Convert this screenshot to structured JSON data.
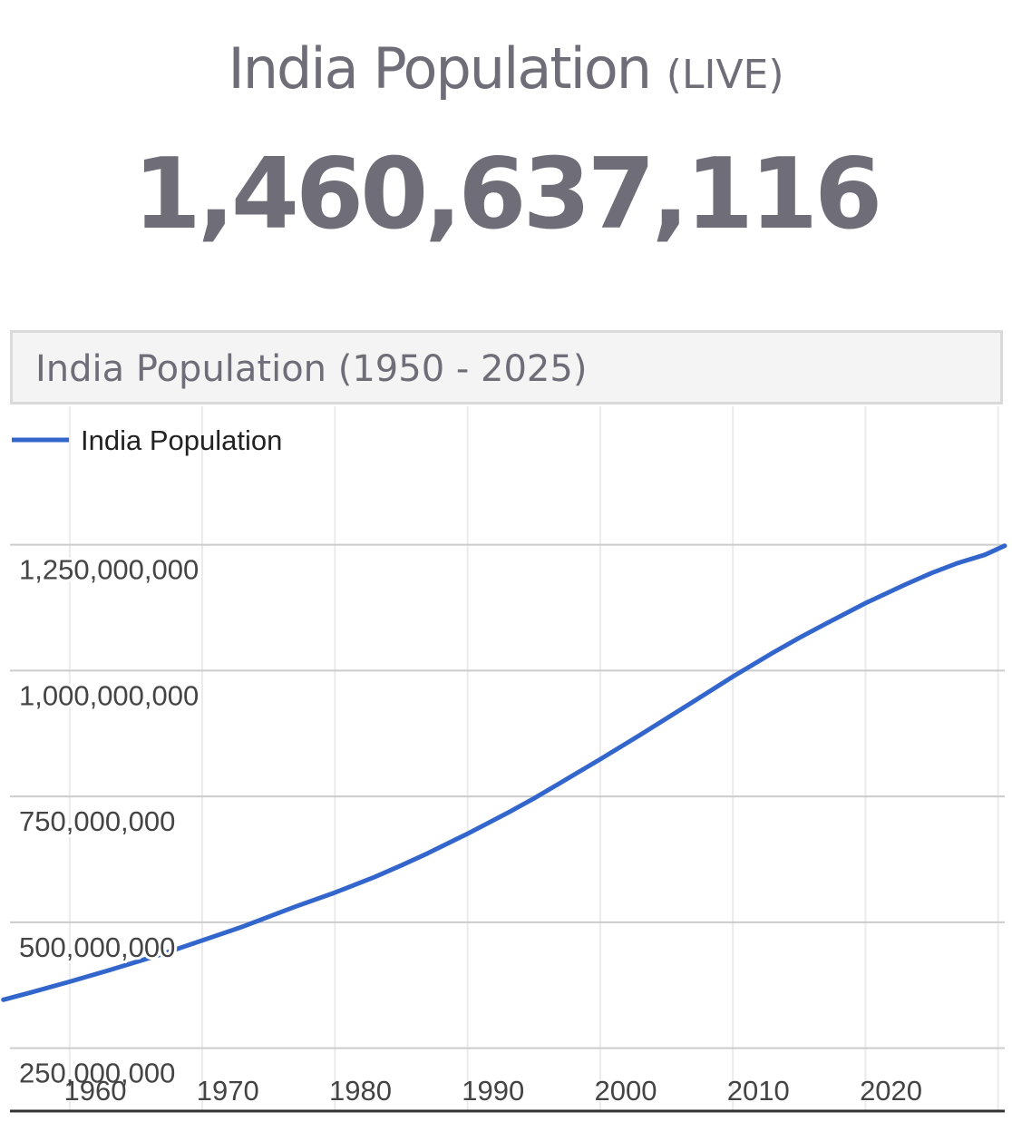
{
  "header": {
    "title": "India Population",
    "title_suffix": "(LIVE)",
    "live_count": "1,460,637,116"
  },
  "chart_panel": {
    "title": "India Population (1950 - 2025)"
  },
  "colors": {
    "text": "#6e6d78",
    "line": "#3366cc",
    "grid": "#cccccc",
    "grid_minor": "#ebebeb"
  },
  "chart_data": {
    "type": "line",
    "title": "India Population (1950 - 2025)",
    "legend_position": "top-left",
    "grid": true,
    "xlim": [
      1950.5,
      2025.5
    ],
    "ylim": [
      125000000,
      1525000000
    ],
    "x_ticks": [
      1960,
      1970,
      1980,
      1990,
      2000,
      2010,
      2020
    ],
    "x_tick_labels": [
      "1960",
      "1970",
      "1980",
      "1990",
      "2000",
      "2010",
      "2020"
    ],
    "y_ticks": [
      250000000,
      500000000,
      750000000,
      1000000000,
      1250000000
    ],
    "y_tick_labels": [
      "250,000,000",
      "500,000,000",
      "750,000,000",
      "1,000,000,000",
      "1,250,000,000"
    ],
    "series": [
      {
        "name": "India Population",
        "x": [
          1950,
          1952,
          1955,
          1958,
          1960,
          1962,
          1965,
          1968,
          1970,
          1972,
          1975,
          1978,
          1980,
          1982,
          1985,
          1988,
          1990,
          1992,
          1995,
          1998,
          2000,
          2002,
          2005,
          2008,
          2010,
          2012,
          2015,
          2018,
          2020,
          2022,
          2024,
          2025.5
        ],
        "y": [
          346000000,
          360000000,
          382000000,
          405000000,
          421000000,
          437000000,
          464000000,
          491000000,
          511000000,
          531000000,
          559000000,
          590000000,
          613000000,
          637000000,
          676000000,
          717000000,
          746000000,
          777000000,
          824000000,
          872000000,
          905000000,
          938000000,
          988000000,
          1035000000,
          1065000000,
          1093000000,
          1134000000,
          1171000000,
          1194000000,
          1214000000,
          1230000000,
          1248000000
        ]
      }
    ]
  }
}
